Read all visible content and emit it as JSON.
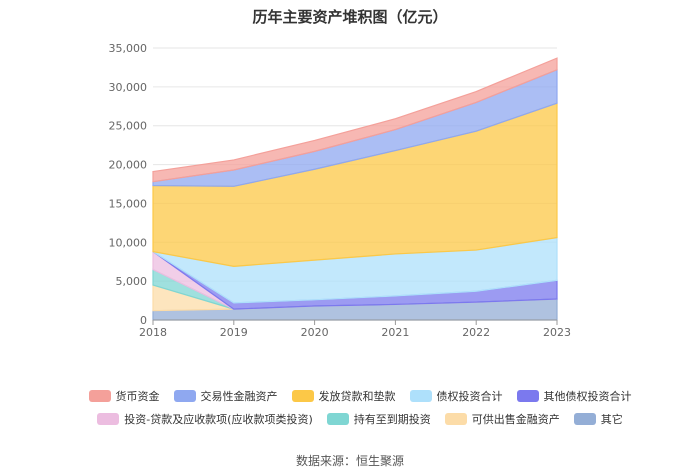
{
  "chart_data": {
    "type": "area",
    "title": "历年主要资产堆积图（亿元）",
    "xlabel": "",
    "ylabel": "",
    "x": [
      "2018",
      "2019",
      "2020",
      "2021",
      "2022",
      "2023"
    ],
    "ylim": [
      0,
      35000
    ],
    "yticks": [
      0,
      5000,
      10000,
      15000,
      20000,
      25000,
      30000,
      35000
    ],
    "ytick_labels": [
      "0",
      "5,000",
      "10,000",
      "15,000",
      "20,000",
      "25,000",
      "30,000",
      "35,000"
    ],
    "stack_order_bottom_to_top": [
      "其它",
      "可供出售金融资产",
      "持有至到期投资",
      "投资-贷款及应收款项(应收款项类投资)",
      "其他债权投资合计",
      "债权投资合计",
      "发放贷款和垫款",
      "交易性金融资产",
      "货币资金"
    ],
    "series": [
      {
        "name": "货币资金",
        "color": "#f4a09a",
        "values": [
          1300,
          1300,
          1400,
          1400,
          1400,
          1500
        ]
      },
      {
        "name": "交易性金融资产",
        "color": "#8fa8f0",
        "values": [
          500,
          2100,
          2300,
          2700,
          3700,
          4300
        ]
      },
      {
        "name": "发放贷款和垫款",
        "color": "#fcc847",
        "values": [
          8500,
          10300,
          11700,
          13300,
          15300,
          17300
        ]
      },
      {
        "name": "债权投资合计",
        "color": "#aee0fb",
        "values": [
          0,
          4700,
          5100,
          5400,
          5300,
          5500
        ]
      },
      {
        "name": "其他债权投资合计",
        "color": "#7b79ee",
        "values": [
          0,
          800,
          800,
          1100,
          1400,
          2400
        ]
      },
      {
        "name": "投资-贷款及应收款项(应收款项类投资)",
        "color": "#ecbde0",
        "values": [
          2300,
          0,
          0,
          0,
          0,
          0
        ]
      },
      {
        "name": "持有至到期投资",
        "color": "#7fd6d3",
        "values": [
          2000,
          0,
          0,
          0,
          0,
          0
        ]
      },
      {
        "name": "可供出售金融资产",
        "color": "#fcdca8",
        "values": [
          3300,
          0,
          0,
          0,
          0,
          0
        ]
      },
      {
        "name": "其它",
        "color": "#94aed6",
        "values": [
          1200,
          1400,
          1800,
          2000,
          2300,
          2700
        ]
      }
    ],
    "legend_position": "bottom"
  },
  "source": "数据来源：恒生聚源"
}
